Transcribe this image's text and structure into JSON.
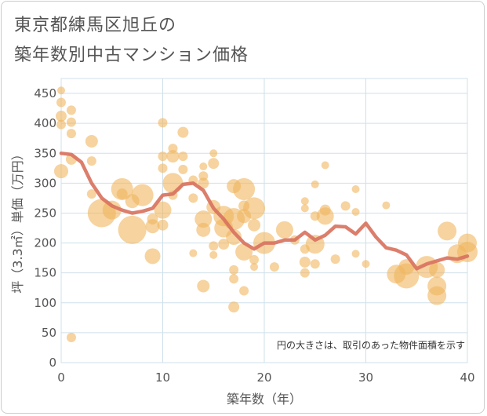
{
  "title_line1": "東京都練馬区旭丘の",
  "title_line2": "築年数別中古マンション価格",
  "note": "円の大きさは、取引のあった物件面積を示す",
  "colors": {
    "bubble": "#f0b55f",
    "line": "#d9735f",
    "grid": "#cfe0ea",
    "plot_bg": "#ffffff"
  },
  "chart_data": {
    "type": "scatter",
    "xlabel": "築年数（年）",
    "ylabel": "坪（3.3㎡）単価（万円）",
    "xlim": [
      0,
      40
    ],
    "ylim": [
      0,
      475
    ],
    "x_ticks": [
      0,
      10,
      20,
      30,
      40
    ],
    "y_ticks": [
      0,
      50,
      100,
      150,
      200,
      250,
      300,
      350,
      400,
      450
    ],
    "grid": true,
    "series": [
      {
        "kind": "bubbles",
        "points": [
          {
            "x": 0,
            "y": 455,
            "s": 5
          },
          {
            "x": 0,
            "y": 435,
            "s": 6
          },
          {
            "x": 0,
            "y": 412,
            "s": 7
          },
          {
            "x": 0,
            "y": 398,
            "s": 6
          },
          {
            "x": 0,
            "y": 320,
            "s": 9
          },
          {
            "x": 1,
            "y": 422,
            "s": 6
          },
          {
            "x": 1,
            "y": 402,
            "s": 6
          },
          {
            "x": 1,
            "y": 383,
            "s": 6
          },
          {
            "x": 1,
            "y": 340,
            "s": 7
          },
          {
            "x": 1,
            "y": 42,
            "s": 6
          },
          {
            "x": 3,
            "y": 370,
            "s": 8
          },
          {
            "x": 3,
            "y": 337,
            "s": 6
          },
          {
            "x": 3,
            "y": 282,
            "s": 6
          },
          {
            "x": 4,
            "y": 250,
            "s": 18
          },
          {
            "x": 5,
            "y": 255,
            "s": 12
          },
          {
            "x": 6,
            "y": 290,
            "s": 14
          },
          {
            "x": 6,
            "y": 282,
            "s": 7
          },
          {
            "x": 7,
            "y": 222,
            "s": 18
          },
          {
            "x": 7,
            "y": 270,
            "s": 9
          },
          {
            "x": 8,
            "y": 280,
            "s": 14
          },
          {
            "x": 9,
            "y": 228,
            "s": 9
          },
          {
            "x": 9,
            "y": 240,
            "s": 7
          },
          {
            "x": 9,
            "y": 178,
            "s": 10
          },
          {
            "x": 10,
            "y": 401,
            "s": 6
          },
          {
            "x": 10,
            "y": 345,
            "s": 6
          },
          {
            "x": 10,
            "y": 325,
            "s": 6
          },
          {
            "x": 10,
            "y": 255,
            "s": 11
          },
          {
            "x": 10,
            "y": 230,
            "s": 7
          },
          {
            "x": 11,
            "y": 358,
            "s": 6
          },
          {
            "x": 11,
            "y": 345,
            "s": 8
          },
          {
            "x": 11,
            "y": 300,
            "s": 13
          },
          {
            "x": 11,
            "y": 280,
            "s": 6
          },
          {
            "x": 12,
            "y": 385,
            "s": 7
          },
          {
            "x": 12,
            "y": 345,
            "s": 6
          },
          {
            "x": 12,
            "y": 323,
            "s": 6
          },
          {
            "x": 13,
            "y": 305,
            "s": 6
          },
          {
            "x": 13,
            "y": 275,
            "s": 6
          },
          {
            "x": 13,
            "y": 183,
            "s": 5
          },
          {
            "x": 14,
            "y": 328,
            "s": 5
          },
          {
            "x": 14,
            "y": 312,
            "s": 6
          },
          {
            "x": 14,
            "y": 300,
            "s": 7
          },
          {
            "x": 14,
            "y": 240,
            "s": 11
          },
          {
            "x": 14,
            "y": 222,
            "s": 9
          },
          {
            "x": 14,
            "y": 128,
            "s": 8
          },
          {
            "x": 15,
            "y": 350,
            "s": 5
          },
          {
            "x": 15,
            "y": 333,
            "s": 7
          },
          {
            "x": 15,
            "y": 260,
            "s": 9
          },
          {
            "x": 15,
            "y": 195,
            "s": 6
          },
          {
            "x": 15,
            "y": 180,
            "s": 5
          },
          {
            "x": 16,
            "y": 245,
            "s": 13
          },
          {
            "x": 16,
            "y": 225,
            "s": 12
          },
          {
            "x": 16,
            "y": 198,
            "s": 7
          },
          {
            "x": 17,
            "y": 295,
            "s": 9
          },
          {
            "x": 17,
            "y": 240,
            "s": 14
          },
          {
            "x": 17,
            "y": 210,
            "s": 10
          },
          {
            "x": 17,
            "y": 155,
            "s": 6
          },
          {
            "x": 17,
            "y": 140,
            "s": 6
          },
          {
            "x": 17,
            "y": 93,
            "s": 7
          },
          {
            "x": 18,
            "y": 290,
            "s": 14
          },
          {
            "x": 18,
            "y": 262,
            "s": 7
          },
          {
            "x": 18,
            "y": 245,
            "s": 9
          },
          {
            "x": 18,
            "y": 185,
            "s": 11
          },
          {
            "x": 18,
            "y": 120,
            "s": 6
          },
          {
            "x": 19,
            "y": 258,
            "s": 14
          },
          {
            "x": 19,
            "y": 230,
            "s": 8
          },
          {
            "x": 19,
            "y": 172,
            "s": 6
          },
          {
            "x": 19,
            "y": 160,
            "s": 5
          },
          {
            "x": 20,
            "y": 200,
            "s": 14
          },
          {
            "x": 21,
            "y": 160,
            "s": 6
          },
          {
            "x": 22,
            "y": 222,
            "s": 11
          },
          {
            "x": 23,
            "y": 205,
            "s": 6
          },
          {
            "x": 24,
            "y": 270,
            "s": 5
          },
          {
            "x": 24,
            "y": 258,
            "s": 5
          },
          {
            "x": 24,
            "y": 190,
            "s": 6
          },
          {
            "x": 24,
            "y": 168,
            "s": 7
          },
          {
            "x": 24,
            "y": 150,
            "s": 6
          },
          {
            "x": 25,
            "y": 298,
            "s": 5
          },
          {
            "x": 25,
            "y": 245,
            "s": 6
          },
          {
            "x": 25,
            "y": 198,
            "s": 12
          },
          {
            "x": 25,
            "y": 165,
            "s": 6
          },
          {
            "x": 26,
            "y": 330,
            "s": 5
          },
          {
            "x": 26,
            "y": 255,
            "s": 7
          },
          {
            "x": 26,
            "y": 245,
            "s": 11
          },
          {
            "x": 27,
            "y": 173,
            "s": 6
          },
          {
            "x": 28,
            "y": 262,
            "s": 6
          },
          {
            "x": 29,
            "y": 290,
            "s": 5
          },
          {
            "x": 29,
            "y": 252,
            "s": 5
          },
          {
            "x": 29,
            "y": 182,
            "s": 5
          },
          {
            "x": 30,
            "y": 165,
            "s": 5
          },
          {
            "x": 32,
            "y": 263,
            "s": 5
          },
          {
            "x": 33,
            "y": 148,
            "s": 12
          },
          {
            "x": 34,
            "y": 145,
            "s": 16
          },
          {
            "x": 34,
            "y": 160,
            "s": 10
          },
          {
            "x": 36,
            "y": 160,
            "s": 14
          },
          {
            "x": 37,
            "y": 128,
            "s": 12
          },
          {
            "x": 37,
            "y": 112,
            "s": 12
          },
          {
            "x": 37,
            "y": 155,
            "s": 10
          },
          {
            "x": 38,
            "y": 220,
            "s": 12
          },
          {
            "x": 39,
            "y": 182,
            "s": 12
          },
          {
            "x": 40,
            "y": 200,
            "s": 12
          },
          {
            "x": 40,
            "y": 185,
            "s": 13
          }
        ]
      },
      {
        "kind": "line",
        "name": "",
        "points": [
          {
            "x": 0,
            "y": 350
          },
          {
            "x": 1,
            "y": 348
          },
          {
            "x": 2,
            "y": 335
          },
          {
            "x": 3,
            "y": 300
          },
          {
            "x": 4,
            "y": 275
          },
          {
            "x": 5,
            "y": 262
          },
          {
            "x": 6,
            "y": 255
          },
          {
            "x": 7,
            "y": 250
          },
          {
            "x": 8,
            "y": 253
          },
          {
            "x": 9,
            "y": 258
          },
          {
            "x": 10,
            "y": 280
          },
          {
            "x": 11,
            "y": 282
          },
          {
            "x": 12,
            "y": 298
          },
          {
            "x": 13,
            "y": 300
          },
          {
            "x": 14,
            "y": 288
          },
          {
            "x": 15,
            "y": 258
          },
          {
            "x": 16,
            "y": 240
          },
          {
            "x": 17,
            "y": 218
          },
          {
            "x": 18,
            "y": 200
          },
          {
            "x": 19,
            "y": 190
          },
          {
            "x": 20,
            "y": 200
          },
          {
            "x": 21,
            "y": 200
          },
          {
            "x": 22,
            "y": 205
          },
          {
            "x": 23,
            "y": 205
          },
          {
            "x": 24,
            "y": 218
          },
          {
            "x": 25,
            "y": 205
          },
          {
            "x": 26,
            "y": 213
          },
          {
            "x": 27,
            "y": 228
          },
          {
            "x": 28,
            "y": 227
          },
          {
            "x": 29,
            "y": 215
          },
          {
            "x": 30,
            "y": 233
          },
          {
            "x": 31,
            "y": 210
          },
          {
            "x": 32,
            "y": 192
          },
          {
            "x": 33,
            "y": 188
          },
          {
            "x": 34,
            "y": 180
          },
          {
            "x": 35,
            "y": 157
          },
          {
            "x": 36,
            "y": 165
          },
          {
            "x": 37,
            "y": 170
          },
          {
            "x": 38,
            "y": 175
          },
          {
            "x": 39,
            "y": 173
          },
          {
            "x": 40,
            "y": 178
          }
        ]
      }
    ]
  }
}
